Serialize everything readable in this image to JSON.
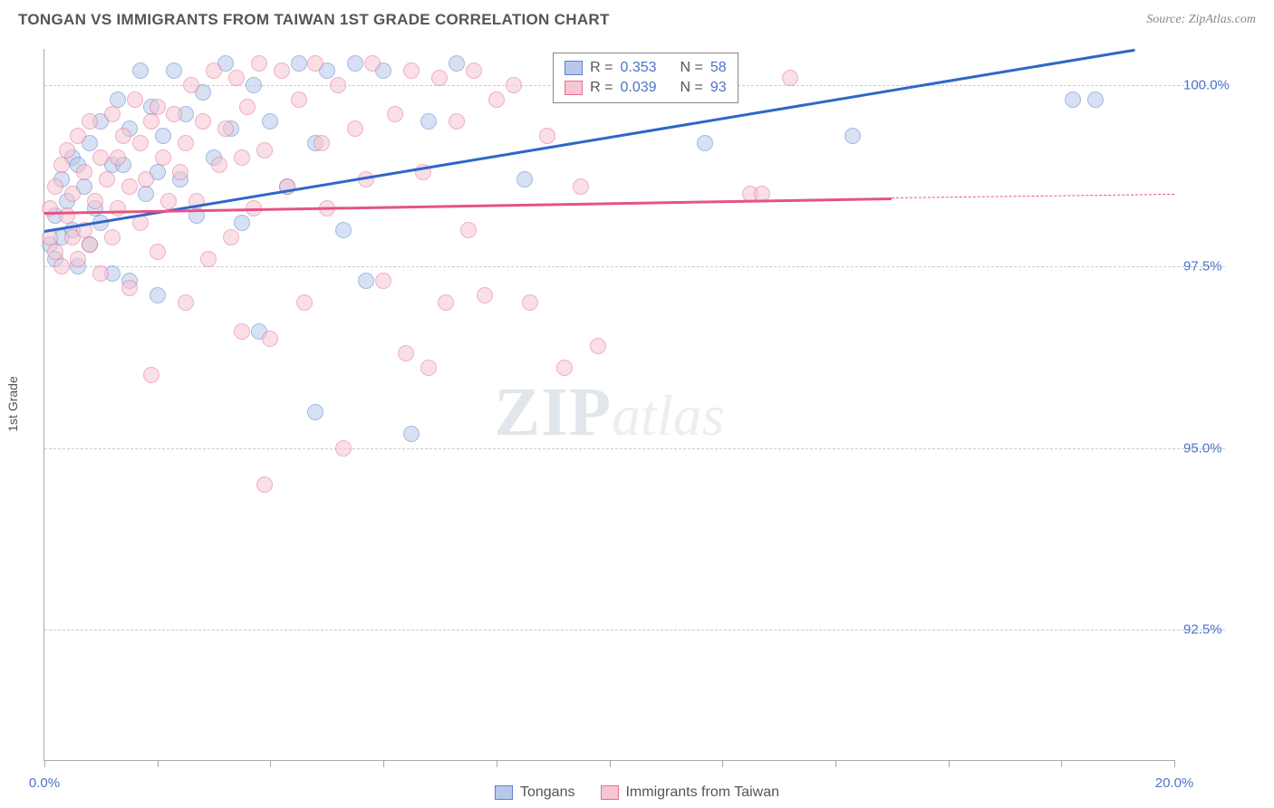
{
  "header": {
    "title": "TONGAN VS IMMIGRANTS FROM TAIWAN 1ST GRADE CORRELATION CHART",
    "source": "Source: ZipAtlas.com"
  },
  "watermark": {
    "part1": "ZIP",
    "part2": "atlas"
  },
  "chart": {
    "type": "scatter",
    "ylabel": "1st Grade",
    "xlim": [
      0,
      20
    ],
    "ylim": [
      90.7,
      100.5
    ],
    "xticks": [
      0,
      2,
      4,
      6,
      8,
      10,
      12,
      14,
      16,
      18,
      20
    ],
    "xtick_labels": {
      "0": "0.0%",
      "20": "20.0%"
    },
    "yticks": [
      92.5,
      95.0,
      97.5,
      100.0
    ],
    "ytick_labels": [
      "92.5%",
      "95.0%",
      "97.5%",
      "100.0%"
    ],
    "grid_color": "#cccccc",
    "axis_color": "#aaaaaa",
    "tick_label_color": "#4a74c9",
    "marker_radius": 9,
    "marker_opacity": 0.55,
    "series": [
      {
        "name": "Tongans",
        "fill": "#b7c9ea",
        "stroke": "#5b82cf",
        "R": "0.353",
        "N": "58",
        "trend": {
          "x1": 0,
          "y1": 98.0,
          "x2": 19.3,
          "y2": 100.5,
          "color": "#2f66c9",
          "width": 3
        },
        "points": [
          [
            0.1,
            97.8
          ],
          [
            0.2,
            98.2
          ],
          [
            0.2,
            97.6
          ],
          [
            0.3,
            98.7
          ],
          [
            0.3,
            97.9
          ],
          [
            0.4,
            98.4
          ],
          [
            0.5,
            99.0
          ],
          [
            0.5,
            98.0
          ],
          [
            0.6,
            98.9
          ],
          [
            0.6,
            97.5
          ],
          [
            0.7,
            98.6
          ],
          [
            0.8,
            99.2
          ],
          [
            0.8,
            97.8
          ],
          [
            0.9,
            98.3
          ],
          [
            1.0,
            99.5
          ],
          [
            1.0,
            98.1
          ],
          [
            1.2,
            98.9
          ],
          [
            1.2,
            97.4
          ],
          [
            1.3,
            99.8
          ],
          [
            1.4,
            98.9
          ],
          [
            1.5,
            99.4
          ],
          [
            1.5,
            97.3
          ],
          [
            1.7,
            100.2
          ],
          [
            1.8,
            98.5
          ],
          [
            1.9,
            99.7
          ],
          [
            2.0,
            98.8
          ],
          [
            2.0,
            97.1
          ],
          [
            2.1,
            99.3
          ],
          [
            2.3,
            100.2
          ],
          [
            2.4,
            98.7
          ],
          [
            2.5,
            99.6
          ],
          [
            2.7,
            98.2
          ],
          [
            2.8,
            99.9
          ],
          [
            3.0,
            99.0
          ],
          [
            3.2,
            100.3
          ],
          [
            3.3,
            99.4
          ],
          [
            3.5,
            98.1
          ],
          [
            3.7,
            100.0
          ],
          [
            3.8,
            96.6
          ],
          [
            4.0,
            99.5
          ],
          [
            4.3,
            98.6
          ],
          [
            4.5,
            100.3
          ],
          [
            4.8,
            99.2
          ],
          [
            4.8,
            95.5
          ],
          [
            5.0,
            100.2
          ],
          [
            5.3,
            98.0
          ],
          [
            5.5,
            100.3
          ],
          [
            5.7,
            97.3
          ],
          [
            6.0,
            100.2
          ],
          [
            6.5,
            95.2
          ],
          [
            6.8,
            99.5
          ],
          [
            7.3,
            100.3
          ],
          [
            8.5,
            98.7
          ],
          [
            9.5,
            99.9
          ],
          [
            11.7,
            99.2
          ],
          [
            14.3,
            99.3
          ],
          [
            18.2,
            99.8
          ],
          [
            18.6,
            99.8
          ]
        ]
      },
      {
        "name": "Immigrants from Taiwan",
        "fill": "#f6c6d3",
        "stroke": "#e76f92",
        "R": "0.039",
        "N": "93",
        "trend": {
          "x1": 0,
          "y1": 98.25,
          "x2": 15.0,
          "y2": 98.45,
          "color": "#e55383",
          "width": 2.5
        },
        "trend_ext": {
          "x1": 15.0,
          "y1": 98.45,
          "x2": 20.0,
          "y2": 98.5,
          "color": "#e55383",
          "width": 1,
          "dashed": true
        },
        "points": [
          [
            0.1,
            97.9
          ],
          [
            0.1,
            98.3
          ],
          [
            0.2,
            98.6
          ],
          [
            0.2,
            97.7
          ],
          [
            0.3,
            98.9
          ],
          [
            0.3,
            97.5
          ],
          [
            0.4,
            98.2
          ],
          [
            0.4,
            99.1
          ],
          [
            0.5,
            97.9
          ],
          [
            0.5,
            98.5
          ],
          [
            0.6,
            99.3
          ],
          [
            0.6,
            97.6
          ],
          [
            0.7,
            98.8
          ],
          [
            0.7,
            98.0
          ],
          [
            0.8,
            99.5
          ],
          [
            0.8,
            97.8
          ],
          [
            0.9,
            98.4
          ],
          [
            1.0,
            99.0
          ],
          [
            1.0,
            97.4
          ],
          [
            1.1,
            98.7
          ],
          [
            1.2,
            99.6
          ],
          [
            1.2,
            97.9
          ],
          [
            1.3,
            99.0
          ],
          [
            1.3,
            98.3
          ],
          [
            1.4,
            99.3
          ],
          [
            1.5,
            98.6
          ],
          [
            1.5,
            97.2
          ],
          [
            1.6,
            99.8
          ],
          [
            1.7,
            98.1
          ],
          [
            1.7,
            99.2
          ],
          [
            1.8,
            98.7
          ],
          [
            1.9,
            99.5
          ],
          [
            1.9,
            96.0
          ],
          [
            2.0,
            99.7
          ],
          [
            2.0,
            97.7
          ],
          [
            2.1,
            99.0
          ],
          [
            2.2,
            98.4
          ],
          [
            2.3,
            99.6
          ],
          [
            2.4,
            98.8
          ],
          [
            2.5,
            99.2
          ],
          [
            2.5,
            97.0
          ],
          [
            2.6,
            100.0
          ],
          [
            2.7,
            98.4
          ],
          [
            2.8,
            99.5
          ],
          [
            2.9,
            97.6
          ],
          [
            3.0,
            100.2
          ],
          [
            3.1,
            98.9
          ],
          [
            3.2,
            99.4
          ],
          [
            3.3,
            97.9
          ],
          [
            3.4,
            100.1
          ],
          [
            3.5,
            99.0
          ],
          [
            3.5,
            96.6
          ],
          [
            3.6,
            99.7
          ],
          [
            3.7,
            98.3
          ],
          [
            3.8,
            100.3
          ],
          [
            3.9,
            99.1
          ],
          [
            3.9,
            94.5
          ],
          [
            4.0,
            96.5
          ],
          [
            4.2,
            100.2
          ],
          [
            4.3,
            98.6
          ],
          [
            4.5,
            99.8
          ],
          [
            4.6,
            97.0
          ],
          [
            4.8,
            100.3
          ],
          [
            4.9,
            99.2
          ],
          [
            5.0,
            98.3
          ],
          [
            5.2,
            100.0
          ],
          [
            5.3,
            95.0
          ],
          [
            5.5,
            99.4
          ],
          [
            5.7,
            98.7
          ],
          [
            5.8,
            100.3
          ],
          [
            6.0,
            97.3
          ],
          [
            6.2,
            99.6
          ],
          [
            6.4,
            96.3
          ],
          [
            6.5,
            100.2
          ],
          [
            6.7,
            98.8
          ],
          [
            6.8,
            96.1
          ],
          [
            7.0,
            100.1
          ],
          [
            7.1,
            97.0
          ],
          [
            7.3,
            99.5
          ],
          [
            7.5,
            98.0
          ],
          [
            7.6,
            100.2
          ],
          [
            7.8,
            97.1
          ],
          [
            8.0,
            99.8
          ],
          [
            8.3,
            100.0
          ],
          [
            8.6,
            97.0
          ],
          [
            8.9,
            99.3
          ],
          [
            9.2,
            96.1
          ],
          [
            9.5,
            98.6
          ],
          [
            9.8,
            96.4
          ],
          [
            10.3,
            100.2
          ],
          [
            12.5,
            98.5
          ],
          [
            12.7,
            98.5
          ],
          [
            13.2,
            100.1
          ]
        ]
      }
    ],
    "legend_box": {
      "rows": [
        {
          "swatch_fill": "#b7c9ea",
          "swatch_stroke": "#5b82cf",
          "r_label": "R =",
          "r_val": "0.353",
          "n_label": "N =",
          "n_val": "58"
        },
        {
          "swatch_fill": "#f6c6d3",
          "swatch_stroke": "#e76f92",
          "r_label": "R =",
          "r_val": "0.039",
          "n_label": "N =",
          "n_val": "93"
        }
      ]
    },
    "bottom_legend": [
      {
        "swatch_fill": "#b7c9ea",
        "swatch_stroke": "#5b82cf",
        "label": "Tongans"
      },
      {
        "swatch_fill": "#f6c6d3",
        "swatch_stroke": "#e76f92",
        "label": "Immigrants from Taiwan"
      }
    ]
  }
}
